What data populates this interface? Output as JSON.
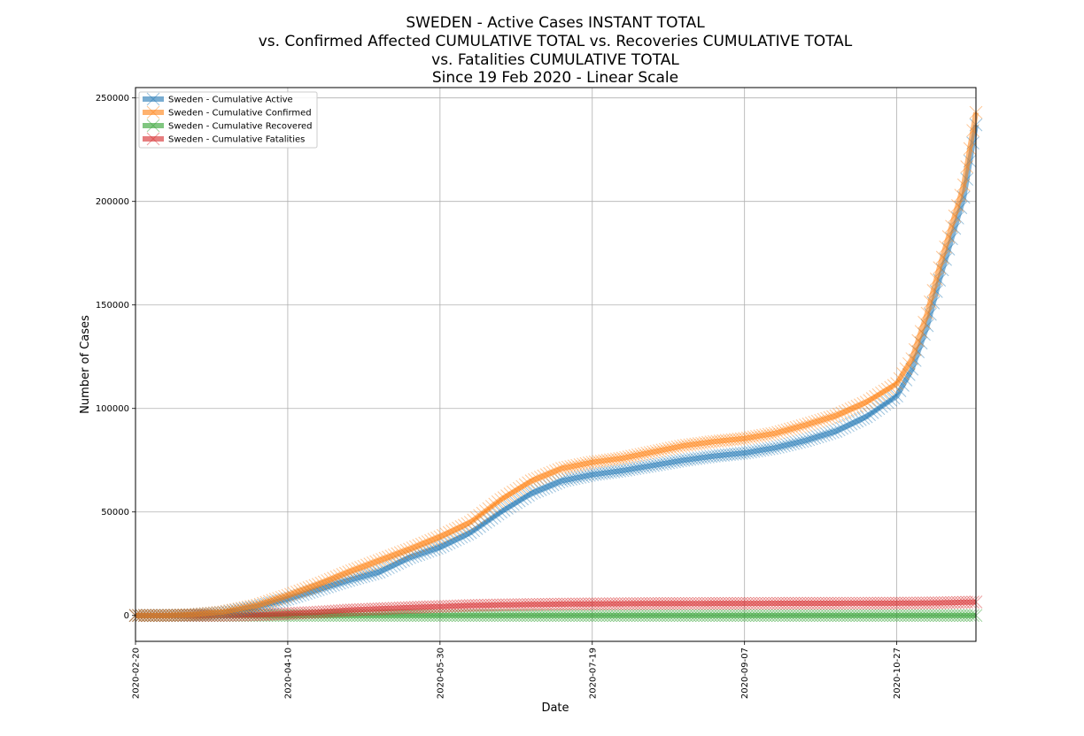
{
  "chart_data": {
    "type": "line",
    "title_lines": [
      "SWEDEN - Active Cases INSTANT TOTAL",
      "vs. Confirmed Affected CUMULATIVE TOTAL vs. Recoveries CUMULATIVE TOTAL",
      "vs. Fatalities CUMULATIVE TOTAL",
      "Since 19 Feb 2020 - Linear Scale"
    ],
    "xlabel": "Date",
    "ylabel": "Number of Cases",
    "x_ticks": [
      "2020-02-20",
      "2020-04-10",
      "2020-05-30",
      "2020-07-19",
      "2020-09-07",
      "2020-10-27"
    ],
    "x_range": [
      "2020-02-20",
      "2020-11-22"
    ],
    "y_ticks": [
      0,
      50000,
      100000,
      150000,
      200000,
      250000
    ],
    "ylim": [
      -12500,
      255000
    ],
    "grid": true,
    "legend_position": "top-left",
    "marker": "x",
    "series": [
      {
        "name": "Sweden - Cumulative Active",
        "color": "#1f77b4",
        "points": [
          [
            "2020-02-20",
            0
          ],
          [
            "2020-03-01",
            10
          ],
          [
            "2020-03-10",
            350
          ],
          [
            "2020-03-20",
            1500
          ],
          [
            "2020-03-31",
            4300
          ],
          [
            "2020-04-10",
            8000
          ],
          [
            "2020-04-20",
            12500
          ],
          [
            "2020-04-30",
            17000
          ],
          [
            "2020-05-10",
            21000
          ],
          [
            "2020-05-20",
            28000
          ],
          [
            "2020-05-30",
            33000
          ],
          [
            "2020-06-09",
            40000
          ],
          [
            "2020-06-19",
            50000
          ],
          [
            "2020-06-29",
            59000
          ],
          [
            "2020-07-09",
            65000
          ],
          [
            "2020-07-19",
            68000
          ],
          [
            "2020-07-29",
            70000
          ],
          [
            "2020-08-08",
            72500
          ],
          [
            "2020-08-18",
            75000
          ],
          [
            "2020-08-28",
            77000
          ],
          [
            "2020-09-07",
            78500
          ],
          [
            "2020-09-17",
            81000
          ],
          [
            "2020-09-27",
            84500
          ],
          [
            "2020-10-07",
            89000
          ],
          [
            "2020-10-17",
            96000
          ],
          [
            "2020-10-27",
            106000
          ],
          [
            "2020-11-01",
            119000
          ],
          [
            "2020-11-06",
            140000
          ],
          [
            "2020-11-10",
            162000
          ],
          [
            "2020-11-14",
            182000
          ],
          [
            "2020-11-18",
            202000
          ],
          [
            "2020-11-22",
            237000
          ]
        ]
      },
      {
        "name": "Sweden - Cumulative Confirmed",
        "color": "#ff7f0e",
        "points": [
          [
            "2020-02-20",
            0
          ],
          [
            "2020-03-01",
            15
          ],
          [
            "2020-03-10",
            400
          ],
          [
            "2020-03-20",
            1700
          ],
          [
            "2020-03-31",
            4900
          ],
          [
            "2020-04-10",
            9700
          ],
          [
            "2020-04-20",
            15000
          ],
          [
            "2020-04-30",
            21000
          ],
          [
            "2020-05-10",
            26500
          ],
          [
            "2020-05-20",
            32000
          ],
          [
            "2020-05-30",
            38000
          ],
          [
            "2020-06-09",
            45000
          ],
          [
            "2020-06-19",
            56000
          ],
          [
            "2020-06-29",
            65000
          ],
          [
            "2020-07-09",
            71000
          ],
          [
            "2020-07-19",
            74000
          ],
          [
            "2020-07-29",
            76000
          ],
          [
            "2020-08-08",
            79000
          ],
          [
            "2020-08-18",
            82000
          ],
          [
            "2020-08-28",
            84000
          ],
          [
            "2020-09-07",
            85500
          ],
          [
            "2020-09-17",
            88000
          ],
          [
            "2020-09-27",
            92000
          ],
          [
            "2020-10-07",
            96500
          ],
          [
            "2020-10-17",
            103000
          ],
          [
            "2020-10-27",
            112000
          ],
          [
            "2020-11-01",
            124000
          ],
          [
            "2020-11-06",
            146000
          ],
          [
            "2020-11-10",
            168000
          ],
          [
            "2020-11-14",
            188000
          ],
          [
            "2020-11-18",
            208000
          ],
          [
            "2020-11-22",
            243000
          ]
        ]
      },
      {
        "name": "Sweden - Cumulative Recovered",
        "color": "#2ca02c",
        "points": [
          [
            "2020-02-20",
            0
          ],
          [
            "2020-04-10",
            0
          ],
          [
            "2020-07-19",
            0
          ],
          [
            "2020-09-07",
            0
          ],
          [
            "2020-10-27",
            0
          ],
          [
            "2020-11-22",
            0
          ]
        ]
      },
      {
        "name": "Sweden - Cumulative Fatalities",
        "color": "#d62728",
        "points": [
          [
            "2020-02-20",
            0
          ],
          [
            "2020-03-10",
            0
          ],
          [
            "2020-03-20",
            20
          ],
          [
            "2020-03-31",
            240
          ],
          [
            "2020-04-10",
            900
          ],
          [
            "2020-04-20",
            1600
          ],
          [
            "2020-04-30",
            2600
          ],
          [
            "2020-05-10",
            3200
          ],
          [
            "2020-05-20",
            3800
          ],
          [
            "2020-05-30",
            4300
          ],
          [
            "2020-06-09",
            4800
          ],
          [
            "2020-06-19",
            5100
          ],
          [
            "2020-06-29",
            5300
          ],
          [
            "2020-07-09",
            5500
          ],
          [
            "2020-07-19",
            5600
          ],
          [
            "2020-08-08",
            5760
          ],
          [
            "2020-09-07",
            5840
          ],
          [
            "2020-10-07",
            5890
          ],
          [
            "2020-10-27",
            5930
          ],
          [
            "2020-11-10",
            6100
          ],
          [
            "2020-11-22",
            6500
          ]
        ]
      }
    ]
  }
}
